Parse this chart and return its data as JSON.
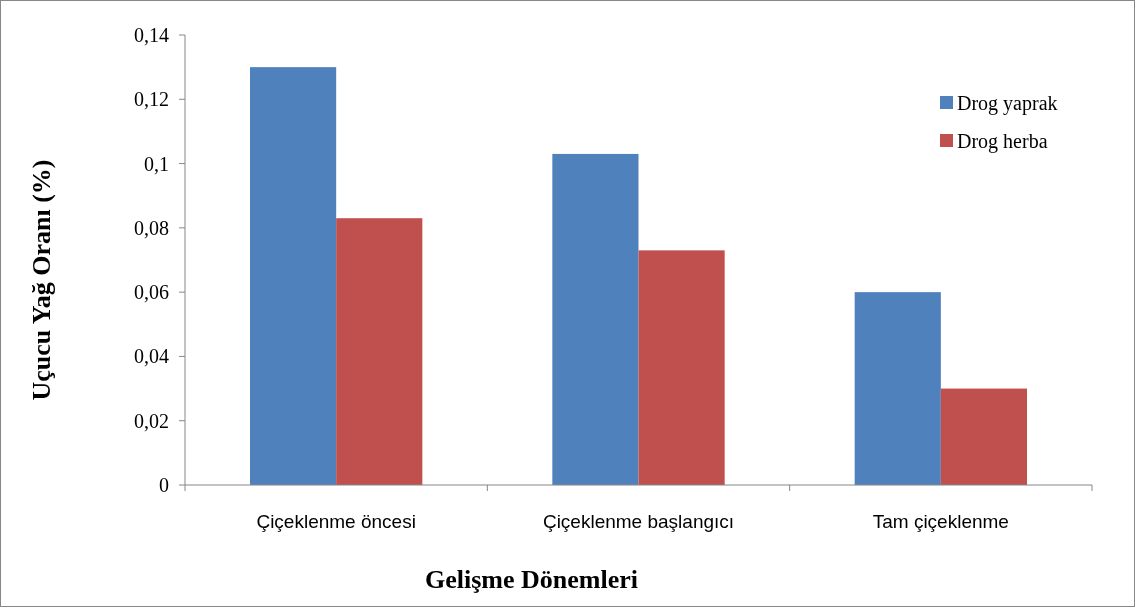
{
  "chart_data": {
    "type": "bar",
    "xlabel": "Gelişme Dönemleri",
    "ylabel": "Uçucu Yağ Oranı (%)",
    "categories": [
      "Çiçeklenme öncesi",
      "Çiçeklenme başlangıcı",
      "Tam çiçeklenme"
    ],
    "series": [
      {
        "name": "Drog yaprak",
        "color": "#4f81bd",
        "values": [
          0.13,
          0.103,
          0.06
        ]
      },
      {
        "name": "Drog herba",
        "color": "#c0504d",
        "values": [
          0.083,
          0.073,
          0.03
        ]
      }
    ],
    "ylim": [
      0,
      0.14
    ],
    "yticks": [
      0,
      {
        "value": 0.02,
        "label": "0,02"
      },
      {
        "value": 0.04,
        "label": "0,04"
      },
      {
        "value": 0.06,
        "label": "0,06"
      },
      {
        "value": 0.08,
        "label": "0,08"
      },
      {
        "value": 0.1,
        "label": "0,1"
      },
      {
        "value": 0.12,
        "label": "0,12"
      },
      {
        "value": 0.14,
        "label": "0,14"
      }
    ],
    "grid": false,
    "legend": "top right"
  }
}
